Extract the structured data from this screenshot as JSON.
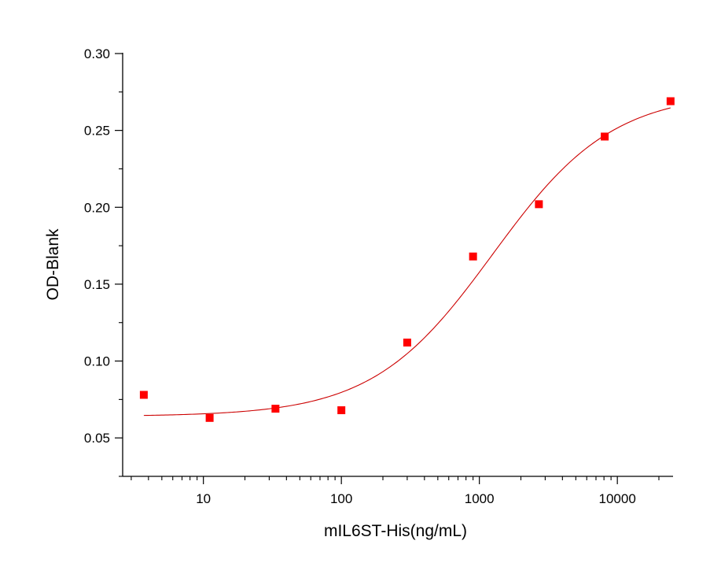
{
  "chart_data": {
    "type": "scatter",
    "title": "",
    "xlabel": "mIL6ST-His(ng/mL)",
    "ylabel": "OD-Blank",
    "x_scale": "log",
    "xlim": [
      2.6,
      25000
    ],
    "ylim": [
      0.025,
      0.3
    ],
    "x_ticks": [
      10,
      100,
      1000,
      10000
    ],
    "x_tick_labels": [
      "10",
      "100",
      "1000",
      "10000"
    ],
    "y_ticks": [
      0.05,
      0.1,
      0.15,
      0.2,
      0.25,
      0.3
    ],
    "y_tick_labels": [
      "0.05",
      "0.10",
      "0.15",
      "0.20",
      "0.25",
      "0.30"
    ],
    "grid": false,
    "legend": "none",
    "series": [
      {
        "kind": "points",
        "marker": "square",
        "color": "#ff0000",
        "x": [
          3.7,
          11.1,
          33.3,
          100,
          300,
          900,
          2700,
          8100,
          24300
        ],
        "y": [
          0.078,
          0.063,
          0.069,
          0.068,
          0.112,
          0.168,
          0.202,
          0.246,
          0.269
        ]
      },
      {
        "kind": "fit-curve",
        "color": "#cc0000",
        "model": "4PL",
        "x_range": [
          3.7,
          24300
        ],
        "bottom": 0.064,
        "top": 0.275,
        "ec50": 1250,
        "hill": 1.0
      }
    ]
  }
}
